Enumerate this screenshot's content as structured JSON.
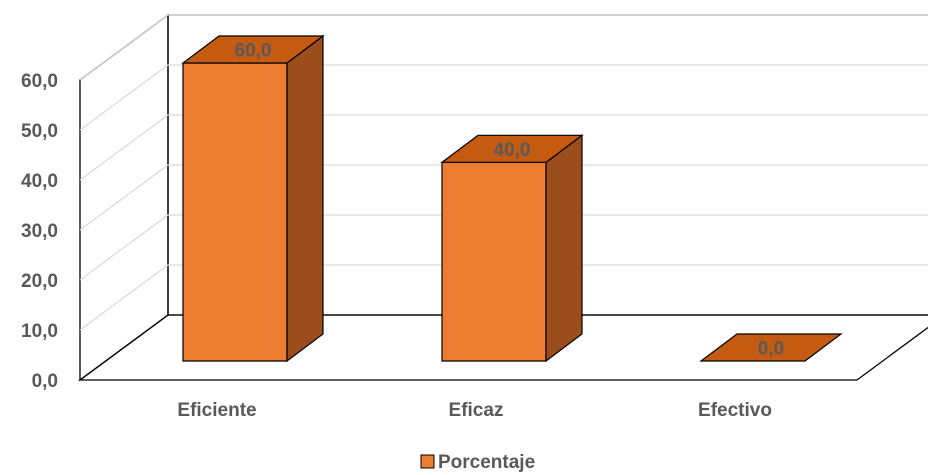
{
  "chart_data": {
    "type": "bar",
    "style": "3d-column",
    "categories": [
      "Eficiente",
      "Eficaz",
      "Efectivo"
    ],
    "series": [
      {
        "name": "Porcentaje",
        "values": [
          60.0,
          40.0,
          0.0
        ]
      }
    ],
    "data_labels": [
      "60,0",
      "40,0",
      "0,0"
    ],
    "y_ticks": [
      "0,0",
      "10,0",
      "20,0",
      "30,0",
      "40,0",
      "50,0",
      "60,0"
    ],
    "ylim": [
      0,
      60
    ],
    "grid": true,
    "legend": "bottom",
    "colors": {
      "front": "#ED7D31",
      "top": "#C55A11",
      "side": "#9C4D1C",
      "edge": "#000000",
      "grid": "#D9D9D9",
      "text": "#595959"
    }
  }
}
